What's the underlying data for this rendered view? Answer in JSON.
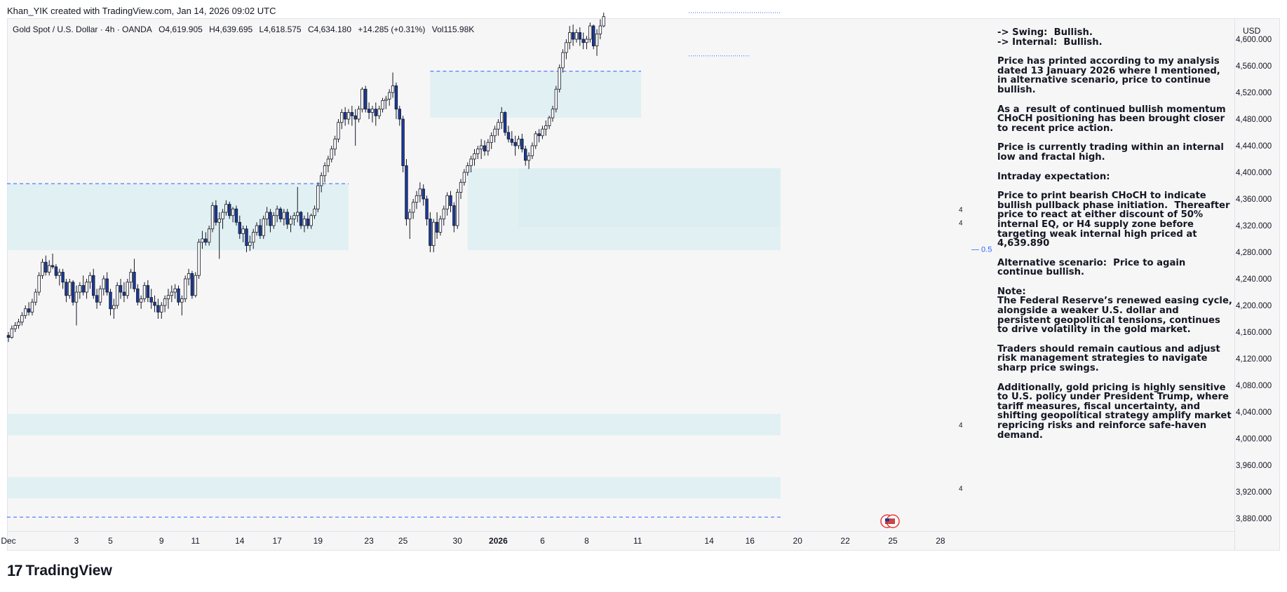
{
  "header": {
    "attribution": "Khan_YIK created with TradingView.com, Jan 14, 2026 09:02 UTC"
  },
  "legend": {
    "symbol": "Gold Spot / U.S. Dollar · 4h · OANDA",
    "open": "O4,619.905",
    "high": "H4,639.695",
    "low": "L4,618.575",
    "close": "C4,634.180",
    "change": "+14.285 (+0.31%)",
    "volume": "Vol115.98K"
  },
  "currency": "USD",
  "colors": {
    "up": "#ffffff",
    "down": "#1a3a9e",
    "zone": "#d9edf1",
    "dashed": "#2962ff",
    "text": "#131722"
  },
  "notes": [
    "-> Swing:  Bullish.\n-> Internal:  Bullish.",
    "Price has printed according to my analysis dated 13 January 2026 where I mentioned, in alternative scenario, price to continue bullish.",
    "As a  result of continued bullish momentum CHoCH positioning has been brought closer to recent price action.",
    "Price is currently trading within an internal low and fractal high.",
    "Intraday expectation:",
    "Price to print bearish CHoCH to indicate bullish pullback phase initiation.  Thereafter price to react at either discount of 50% internal EQ, or H4 supply zone before targeting weak internal high priced at 4,639.890",
    "Alternative scenario:  Price to again continue bullish.",
    "Note:",
    "The Federal Reserve’s renewed easing cycle, alongside a weaker U.S. dollar and persistent geopolitical tensions, continues to drive volatility in the gold market.",
    "Traders should remain cautious and adjust risk management strategies to navigate sharp price swings.",
    "Additionally, gold pricing is highly sensitive to U.S. policy under President Trump, where tariff measures, fiscal uncertainty, and shifting geopolitical strategy amplify market repricing risks and reinforce safe-haven demand."
  ],
  "labels": {
    "eq": "— 0.5",
    "zone_tag": "4"
  },
  "footer": {
    "brand": "TradingView",
    "logo_mark": "17"
  },
  "chart_data": {
    "type": "candlestick",
    "timeframe": "4h",
    "ylim": [
      3860,
      4640
    ],
    "y_ticks": [
      3880,
      3920,
      3960,
      4000,
      4040,
      4080,
      4120,
      4160,
      4200,
      4240,
      4280,
      4320,
      4360,
      4400,
      4440,
      4480,
      4520,
      4560,
      4600
    ],
    "y_tick_labels": [
      "3,880.000",
      "3,920.000",
      "3,960.000",
      "4,000.000",
      "4,040.000",
      "4,080.000",
      "4,120.000",
      "4,160.000",
      "4,200.000",
      "4,240.000",
      "4,280.000",
      "4,320.000",
      "4,360.000",
      "4,400.000",
      "4,440.000",
      "4,480.000",
      "4,520.000",
      "4,560.000",
      "4,600.000"
    ],
    "x_ticks": [
      "Dec",
      "3",
      "5",
      "9",
      "11",
      "14",
      "17",
      "19",
      "23",
      "25",
      "30",
      "2026",
      "6",
      "8",
      "11",
      "14",
      "16",
      "20",
      "22",
      "25",
      "28"
    ],
    "x_tick_index": [
      0,
      20,
      30,
      45,
      55,
      68,
      79,
      91,
      106,
      116,
      132,
      144,
      157,
      170,
      185,
      206,
      218,
      232,
      246,
      260,
      274
    ],
    "zones": [
      {
        "x0": -15,
        "x1": 100,
        "y0": 4283,
        "y1": 4383
      },
      {
        "x0": 124,
        "x1": 186,
        "y0": 4482,
        "y1": 4552
      },
      {
        "x0": 135,
        "x1": 227,
        "y0": 4283,
        "y1": 4406
      },
      {
        "x0": 150,
        "x1": 227,
        "y0": 4318,
        "y1": 4406
      },
      {
        "x0": -15,
        "x1": 227,
        "y0": 4005,
        "y1": 4037
      },
      {
        "x0": -15,
        "x1": 227,
        "y0": 3910,
        "y1": 3942
      }
    ],
    "levels": [
      {
        "price": 4383,
        "x0": -15,
        "x1": 100,
        "style": "dashed"
      },
      {
        "price": 4552,
        "x0": 124,
        "x1": 186,
        "style": "dashed"
      },
      {
        "price": 3882,
        "x0": -15,
        "x1": 227,
        "style": "dashed"
      },
      {
        "price": 4640,
        "x0": 200,
        "x1": 227,
        "style": "dotted"
      },
      {
        "price": 4575,
        "x0": 200,
        "x1": 218,
        "style": "dotted"
      }
    ],
    "eq_price": 4285,
    "candles": [
      [
        4155,
        4160,
        4145,
        4152
      ],
      [
        4152,
        4170,
        4150,
        4165
      ],
      [
        4165,
        4175,
        4160,
        4170
      ],
      [
        4170,
        4180,
        4165,
        4175
      ],
      [
        4175,
        4190,
        4170,
        4185
      ],
      [
        4185,
        4200,
        4180,
        4195
      ],
      [
        4195,
        4205,
        4185,
        4190
      ],
      [
        4190,
        4210,
        4185,
        4205
      ],
      [
        4205,
        4225,
        4200,
        4220
      ],
      [
        4220,
        4250,
        4215,
        4245
      ],
      [
        4245,
        4270,
        4240,
        4265
      ],
      [
        4265,
        4275,
        4245,
        4250
      ],
      [
        4250,
        4268,
        4245,
        4260
      ],
      [
        4260,
        4278,
        4255,
        4258
      ],
      [
        4258,
        4262,
        4240,
        4245
      ],
      [
        4245,
        4255,
        4230,
        4250
      ],
      [
        4250,
        4255,
        4225,
        4235
      ],
      [
        4235,
        4240,
        4205,
        4215
      ],
      [
        4215,
        4240,
        4210,
        4235
      ],
      [
        4235,
        4238,
        4200,
        4205
      ],
      [
        4205,
        4230,
        4170,
        4220
      ],
      [
        4220,
        4235,
        4210,
        4230
      ],
      [
        4230,
        4245,
        4215,
        4220
      ],
      [
        4220,
        4240,
        4210,
        4235
      ],
      [
        4235,
        4250,
        4225,
        4245
      ],
      [
        4245,
        4255,
        4210,
        4215
      ],
      [
        4215,
        4225,
        4195,
        4205
      ],
      [
        4205,
        4230,
        4200,
        4225
      ],
      [
        4225,
        4245,
        4215,
        4240
      ],
      [
        4240,
        4250,
        4215,
        4220
      ],
      [
        4220,
        4225,
        4185,
        4195
      ],
      [
        4195,
        4210,
        4180,
        4200
      ],
      [
        4200,
        4235,
        4195,
        4230
      ],
      [
        4230,
        4240,
        4210,
        4220
      ],
      [
        4220,
        4235,
        4205,
        4215
      ],
      [
        4215,
        4240,
        4210,
        4235
      ],
      [
        4235,
        4255,
        4225,
        4250
      ],
      [
        4250,
        4270,
        4220,
        4225
      ],
      [
        4225,
        4232,
        4200,
        4205
      ],
      [
        4205,
        4215,
        4195,
        4210
      ],
      [
        4210,
        4235,
        4205,
        4230
      ],
      [
        4230,
        4238,
        4205,
        4212
      ],
      [
        4212,
        4225,
        4195,
        4205
      ],
      [
        4205,
        4215,
        4190,
        4200
      ],
      [
        4200,
        4210,
        4180,
        4190
      ],
      [
        4190,
        4205,
        4180,
        4200
      ],
      [
        4200,
        4215,
        4190,
        4210
      ],
      [
        4210,
        4225,
        4195,
        4215
      ],
      [
        4215,
        4230,
        4205,
        4220
      ],
      [
        4220,
        4232,
        4210,
        4225
      ],
      [
        4225,
        4230,
        4200,
        4205
      ],
      [
        4205,
        4215,
        4185,
        4210
      ],
      [
        4210,
        4245,
        4205,
        4240
      ],
      [
        4240,
        4255,
        4230,
        4248
      ],
      [
        4248,
        4252,
        4210,
        4215
      ],
      [
        4215,
        4250,
        4212,
        4245
      ],
      [
        4245,
        4300,
        4240,
        4295
      ],
      [
        4295,
        4312,
        4285,
        4300
      ],
      [
        4300,
        4310,
        4290,
        4295
      ],
      [
        4295,
        4320,
        4290,
        4315
      ],
      [
        4315,
        4355,
        4310,
        4350
      ],
      [
        4350,
        4358,
        4320,
        4325
      ],
      [
        4325,
        4340,
        4270,
        4330
      ],
      [
        4330,
        4345,
        4315,
        4340
      ],
      [
        4340,
        4358,
        4335,
        4352
      ],
      [
        4352,
        4356,
        4330,
        4335
      ],
      [
        4335,
        4348,
        4325,
        4345
      ],
      [
        4345,
        4350,
        4320,
        4325
      ],
      [
        4325,
        4335,
        4300,
        4308
      ],
      [
        4308,
        4320,
        4295,
        4315
      ],
      [
        4315,
        4320,
        4280,
        4290
      ],
      [
        4290,
        4305,
        4282,
        4295
      ],
      [
        4295,
        4315,
        4285,
        4310
      ],
      [
        4310,
        4325,
        4305,
        4320
      ],
      [
        4320,
        4330,
        4300,
        4305
      ],
      [
        4305,
        4335,
        4300,
        4330
      ],
      [
        4330,
        4348,
        4320,
        4340
      ],
      [
        4340,
        4345,
        4310,
        4320
      ],
      [
        4320,
        4340,
        4315,
        4335
      ],
      [
        4335,
        4350,
        4325,
        4345
      ],
      [
        4345,
        4348,
        4325,
        4330
      ],
      [
        4330,
        4345,
        4320,
        4340
      ],
      [
        4340,
        4345,
        4315,
        4322
      ],
      [
        4322,
        4335,
        4310,
        4330
      ],
      [
        4330,
        4340,
        4320,
        4335
      ],
      [
        4335,
        4378,
        4325,
        4340
      ],
      [
        4340,
        4342,
        4315,
        4320
      ],
      [
        4320,
        4335,
        4310,
        4330
      ],
      [
        4330,
        4340,
        4315,
        4320
      ],
      [
        4320,
        4338,
        4315,
        4335
      ],
      [
        4335,
        4350,
        4330,
        4345
      ],
      [
        4345,
        4385,
        4340,
        4380
      ],
      [
        4380,
        4400,
        4370,
        4395
      ],
      [
        4395,
        4415,
        4385,
        4410
      ],
      [
        4410,
        4425,
        4400,
        4420
      ],
      [
        4420,
        4440,
        4415,
        4435
      ],
      [
        4435,
        4455,
        4425,
        4450
      ],
      [
        4450,
        4480,
        4445,
        4475
      ],
      [
        4475,
        4495,
        4465,
        4490
      ],
      [
        4490,
        4498,
        4470,
        4480
      ],
      [
        4480,
        4495,
        4472,
        4490
      ],
      [
        4490,
        4500,
        4470,
        4485
      ],
      [
        4485,
        4495,
        4440,
        4480
      ],
      [
        4480,
        4500,
        4475,
        4495
      ],
      [
        4495,
        4528,
        4490,
        4525
      ],
      [
        4525,
        4530,
        4490,
        4495
      ],
      [
        4495,
        4505,
        4480,
        4490
      ],
      [
        4490,
        4500,
        4475,
        4495
      ],
      [
        4495,
        4505,
        4470,
        4485
      ],
      [
        4485,
        4500,
        4480,
        4495
      ],
      [
        4495,
        4512,
        4490,
        4508
      ],
      [
        4508,
        4515,
        4495,
        4510
      ],
      [
        4510,
        4525,
        4500,
        4520
      ],
      [
        4520,
        4550,
        4512,
        4530
      ],
      [
        4530,
        4535,
        4480,
        4495
      ],
      [
        4495,
        4500,
        4470,
        4480
      ],
      [
        4480,
        4485,
        4400,
        4410
      ],
      [
        4410,
        4420,
        4320,
        4330
      ],
      [
        4330,
        4345,
        4300,
        4340
      ],
      [
        4340,
        4360,
        4330,
        4355
      ],
      [
        4355,
        4372,
        4345,
        4365
      ],
      [
        4365,
        4385,
        4355,
        4375
      ],
      [
        4375,
        4382,
        4350,
        4360
      ],
      [
        4360,
        4365,
        4320,
        4330
      ],
      [
        4330,
        4340,
        4280,
        4290
      ],
      [
        4290,
        4330,
        4280,
        4325
      ],
      [
        4325,
        4340,
        4300,
        4310
      ],
      [
        4310,
        4335,
        4305,
        4330
      ],
      [
        4330,
        4350,
        4320,
        4345
      ],
      [
        4345,
        4370,
        4335,
        4365
      ],
      [
        4365,
        4372,
        4340,
        4350
      ],
      [
        4350,
        4355,
        4310,
        4320
      ],
      [
        4320,
        4375,
        4315,
        4370
      ],
      [
        4370,
        4390,
        4360,
        4385
      ],
      [
        4385,
        4405,
        4380,
        4400
      ],
      [
        4400,
        4415,
        4395,
        4410
      ],
      [
        4410,
        4425,
        4400,
        4420
      ],
      [
        4420,
        4435,
        4410,
        4428
      ],
      [
        4428,
        4440,
        4420,
        4435
      ],
      [
        4435,
        4450,
        4420,
        4440
      ],
      [
        4440,
        4448,
        4425,
        4432
      ],
      [
        4432,
        4450,
        4425,
        4445
      ],
      [
        4445,
        4460,
        4435,
        4455
      ],
      [
        4455,
        4470,
        4445,
        4465
      ],
      [
        4465,
        4480,
        4455,
        4475
      ],
      [
        4475,
        4498,
        4465,
        4490
      ],
      [
        4490,
        4492,
        4455,
        4460
      ],
      [
        4460,
        4470,
        4445,
        4450
      ],
      [
        4450,
        4462,
        4440,
        4445
      ],
      [
        4445,
        4455,
        4425,
        4440
      ],
      [
        4440,
        4455,
        4435,
        4450
      ],
      [
        4450,
        4458,
        4430,
        4435
      ],
      [
        4435,
        4440,
        4410,
        4418
      ],
      [
        4418,
        4430,
        4405,
        4425
      ],
      [
        4425,
        4445,
        4420,
        4440
      ],
      [
        4440,
        4462,
        4435,
        4458
      ],
      [
        4458,
        4465,
        4445,
        4455
      ],
      [
        4455,
        4470,
        4450,
        4465
      ],
      [
        4465,
        4478,
        4455,
        4470
      ],
      [
        4470,
        4485,
        4465,
        4482
      ],
      [
        4482,
        4500,
        4476,
        4495
      ],
      [
        4495,
        4530,
        4490,
        4525
      ],
      [
        4525,
        4562,
        4520,
        4557
      ],
      [
        4557,
        4585,
        4550,
        4580
      ],
      [
        4580,
        4600,
        4570,
        4595
      ],
      [
        4595,
        4620,
        4585,
        4610
      ],
      [
        4610,
        4622,
        4590,
        4600
      ],
      [
        4600,
        4615,
        4595,
        4610
      ],
      [
        4610,
        4618,
        4590,
        4600
      ],
      [
        4600,
        4610,
        4585,
        4595
      ],
      [
        4595,
        4605,
        4585,
        4600
      ],
      [
        4600,
        4625,
        4595,
        4620
      ],
      [
        4620,
        4622,
        4585,
        4590
      ],
      [
        4590,
        4615,
        4575,
        4608
      ],
      [
        4608,
        4630,
        4600,
        4620
      ],
      [
        4620,
        4640,
        4618,
        4634
      ]
    ]
  }
}
